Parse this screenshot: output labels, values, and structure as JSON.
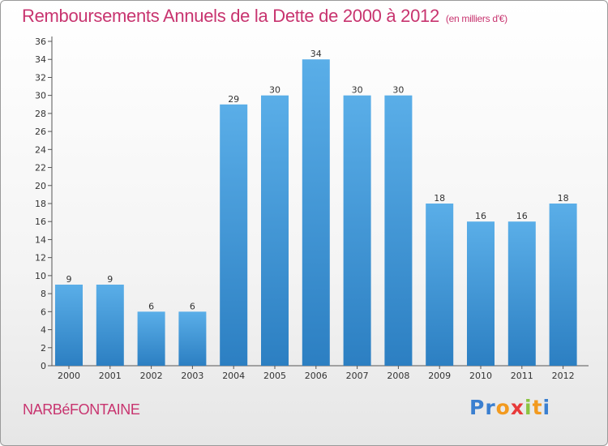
{
  "header": {
    "title": "Remboursements Annuels de la Dette de 2000 à 2012",
    "subtitle": "(en milliers d'€)"
  },
  "footer": {
    "commune": "NARBéFONTAINE",
    "logo": {
      "letters": [
        "P",
        "r",
        "o",
        "x",
        "i",
        "t",
        "i"
      ],
      "colors": [
        "#3a7fd0",
        "#3a7fd0",
        "#f29a1f",
        "#e83a3a",
        "#8bc441",
        "#f29a1f",
        "#3a7fd0"
      ]
    }
  },
  "chart_data": {
    "type": "bar",
    "categories": [
      "2000",
      "2001",
      "2002",
      "2003",
      "2004",
      "2005",
      "2006",
      "2007",
      "2008",
      "2009",
      "2010",
      "2011",
      "2012"
    ],
    "values": [
      9,
      9,
      6,
      6,
      29,
      30,
      34,
      30,
      30,
      18,
      16,
      16,
      18
    ],
    "ylim": [
      0,
      36
    ],
    "yticks": [
      0,
      2,
      4,
      6,
      8,
      10,
      12,
      14,
      16,
      18,
      20,
      22,
      24,
      26,
      28,
      30,
      32,
      34,
      36
    ],
    "grid": false,
    "data_labels": true,
    "colors": {
      "bar_light": "#5aaee8",
      "bar_dark": "#2c7fc2",
      "axis": "#555555"
    }
  }
}
